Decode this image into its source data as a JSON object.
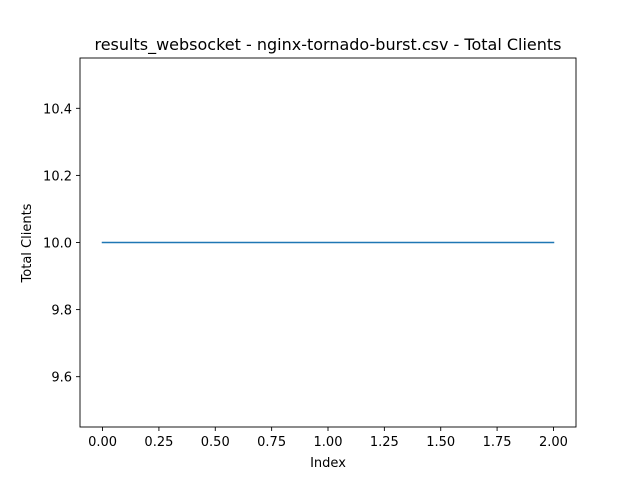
{
  "chart_data": {
    "type": "line",
    "title": "results_websocket - nginx-tornado-burst.csv - Total Clients",
    "xlabel": "Index",
    "ylabel": "Total Clients",
    "xlim": [
      -0.1,
      2.1
    ],
    "ylim": [
      9.45,
      10.55
    ],
    "x_ticks": [
      0.0,
      0.25,
      0.5,
      0.75,
      1.0,
      1.25,
      1.5,
      1.75,
      2.0
    ],
    "x_tick_labels": [
      "0.00",
      "0.25",
      "0.50",
      "0.75",
      "1.00",
      "1.25",
      "1.50",
      "1.75",
      "2.00"
    ],
    "y_ticks": [
      9.6,
      9.8,
      10.0,
      10.2,
      10.4
    ],
    "y_tick_labels": [
      "9.6",
      "9.8",
      "10.0",
      "10.2",
      "10.4"
    ],
    "grid": false,
    "series": [
      {
        "x": [
          0,
          1,
          2
        ],
        "values": [
          10,
          10,
          10
        ],
        "color": "#1f77b4"
      }
    ]
  }
}
